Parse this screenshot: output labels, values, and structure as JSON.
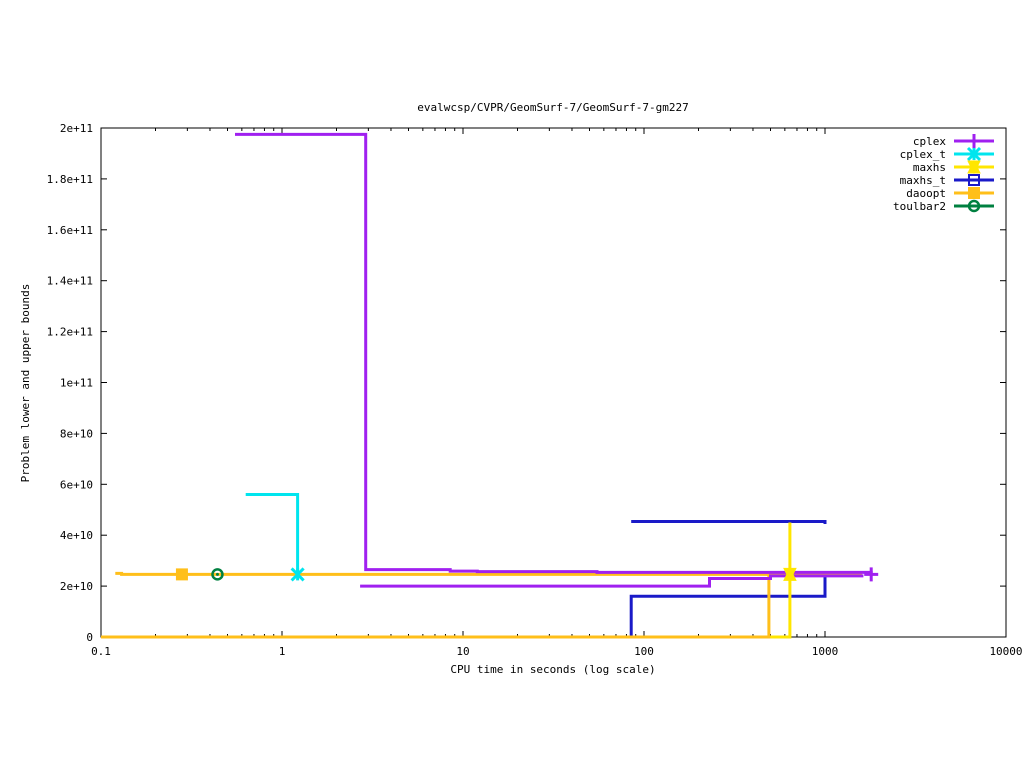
{
  "chart_data": {
    "type": "line",
    "title": "evalwcsp/CVPR/GeomSurf-7/GeomSurf-7-gm227",
    "xlabel": "CPU time in seconds (log scale)",
    "ylabel": "Problem lower and upper bounds",
    "xscale": "log",
    "xlim": [
      0.1,
      10000
    ],
    "ylim": [
      0,
      200000000000
    ],
    "x_ticks": [
      {
        "value": 0.1,
        "label": "0.1"
      },
      {
        "value": 1,
        "label": "1"
      },
      {
        "value": 10,
        "label": "10"
      },
      {
        "value": 100,
        "label": "100"
      },
      {
        "value": 1000,
        "label": "1000"
      },
      {
        "value": 10000,
        "label": "10000"
      }
    ],
    "y_ticks": [
      {
        "value": 0,
        "label": "0"
      },
      {
        "value": 20000000000,
        "label": "2e+10"
      },
      {
        "value": 40000000000,
        "label": "4e+10"
      },
      {
        "value": 60000000000,
        "label": "6e+10"
      },
      {
        "value": 80000000000,
        "label": "8e+10"
      },
      {
        "value": 100000000000,
        "label": "1e+11"
      },
      {
        "value": 120000000000,
        "label": "1.2e+11"
      },
      {
        "value": 140000000000,
        "label": "1.4e+11"
      },
      {
        "value": 160000000000,
        "label": "1.6e+11"
      },
      {
        "value": 180000000000,
        "label": "1.8e+11"
      },
      {
        "value": 200000000000,
        "label": "2e+11"
      }
    ],
    "legend_position": "top-right",
    "grid": false,
    "series": [
      {
        "name": "cplex",
        "color": "#a020f0",
        "marker": "plus",
        "marker_point": [
          1800,
          24600000000
        ],
        "lines": [
          [
            [
              0.55,
              197500000000
            ],
            [
              2.9,
              197500000000
            ],
            [
              2.9,
              26500000000
            ],
            [
              8.5,
              26500000000
            ],
            [
              8.5,
              25900000000
            ],
            [
              12,
              25900000000
            ],
            [
              12,
              25700000000
            ],
            [
              55,
              25700000000
            ],
            [
              55,
              25400000000
            ],
            [
              1800,
              25400000000
            ],
            [
              1800,
              24600000000
            ]
          ],
          [
            [
              2.7,
              20000000000
            ],
            [
              230,
              20000000000
            ],
            [
              230,
              23000000000
            ],
            [
              500,
              23000000000
            ],
            [
              500,
              24000000000
            ],
            [
              1600,
              24000000000
            ],
            [
              1600,
              24600000000
            ]
          ]
        ]
      },
      {
        "name": "cplex_t",
        "color": "#00e5ee",
        "marker": "star",
        "marker_point": [
          1.22,
          24600000000
        ],
        "lines": [
          [
            [
              0.63,
              56000000000
            ],
            [
              1.22,
              56000000000
            ],
            [
              1.22,
              24600000000
            ]
          ]
        ]
      },
      {
        "name": "maxhs",
        "color": "#ffe600",
        "marker": "triangle-down",
        "marker_point": [
          640,
          24600000000
        ],
        "lines": [
          [
            [
              0.1,
              0
            ],
            [
              640,
              0
            ],
            [
              640,
              45000000000
            ]
          ]
        ]
      },
      {
        "name": "maxhs_t",
        "color": "#1a1ac8",
        "marker": "square-open",
        "marker_point": null,
        "lines": [
          [
            [
              85,
              0
            ],
            [
              85,
              16000000000
            ],
            [
              1000,
              16000000000
            ],
            [
              1000,
              24000000000
            ]
          ],
          [
            [
              85,
              45400000000
            ],
            [
              1000,
              45400000000
            ],
            [
              1000,
              44400000000
            ]
          ]
        ]
      },
      {
        "name": "daoopt",
        "color": "#ffbf1a",
        "marker": "square",
        "marker_point": [
          0.28,
          24600000000
        ],
        "lines": [
          [
            [
              0.12,
              25000000000
            ],
            [
              0.13,
              25000000000
            ],
            [
              0.13,
              24600000000
            ],
            [
              1600,
              24600000000
            ]
          ],
          [
            [
              0.1,
              0
            ],
            [
              490,
              0
            ],
            [
              490,
              24800000000
            ]
          ]
        ]
      },
      {
        "name": "toulbar2",
        "color": "#008040",
        "marker": "circle",
        "marker_point": [
          0.44,
          24600000000
        ],
        "lines": []
      }
    ]
  }
}
